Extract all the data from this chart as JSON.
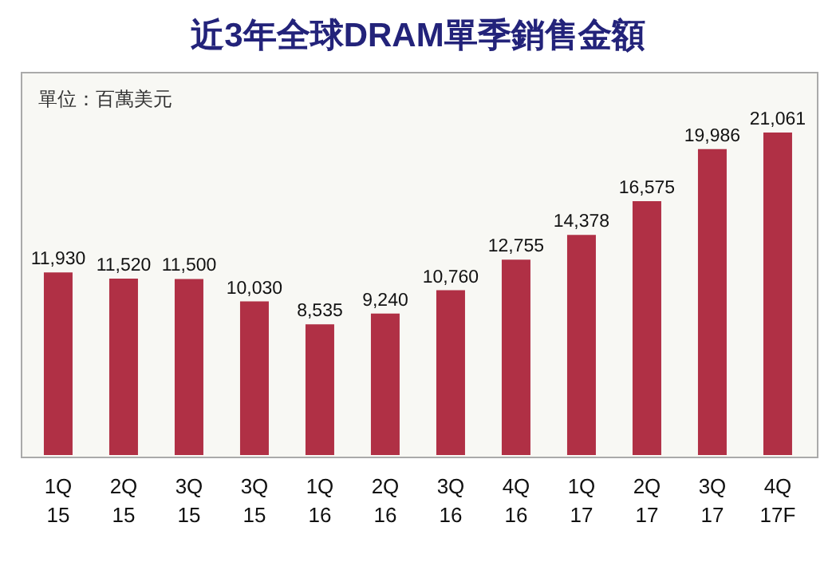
{
  "chart_data": {
    "type": "bar",
    "title": "近3年全球DRAM單季銷售金額",
    "annotations": [
      "單位：百萬美元"
    ],
    "categories": [
      "1Q 15",
      "2Q 15",
      "3Q 15",
      "3Q 15",
      "1Q 16",
      "2Q 16",
      "3Q 16",
      "4Q 16",
      "1Q 17",
      "2Q 17",
      "3Q 17",
      "4Q 17F"
    ],
    "values": [
      11930,
      11520,
      11500,
      10030,
      8535,
      9240,
      10760,
      12755,
      14378,
      16575,
      19986,
      21061
    ],
    "value_labels": [
      "11,930",
      "11,520",
      "11,500",
      "10,030",
      "8,535",
      "9,240",
      "10,760",
      "12,755",
      "14,378",
      "16,575",
      "19,986",
      "21,061"
    ],
    "color": "#b03045"
  }
}
